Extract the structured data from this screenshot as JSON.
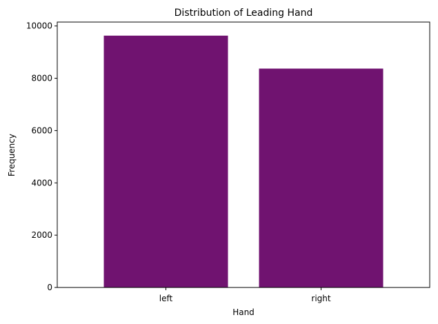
{
  "chart_data": {
    "type": "bar",
    "title": "Distribution of Leading Hand",
    "xlabel": "Hand",
    "ylabel": "Frequency",
    "categories": [
      "left",
      "right"
    ],
    "values": [
      9630,
      8370
    ],
    "ylim": [
      0,
      10150
    ],
    "yticks": [
      0,
      2000,
      4000,
      6000,
      8000,
      10000
    ],
    "bar_color": "#701370",
    "grid": false,
    "legend": false
  }
}
